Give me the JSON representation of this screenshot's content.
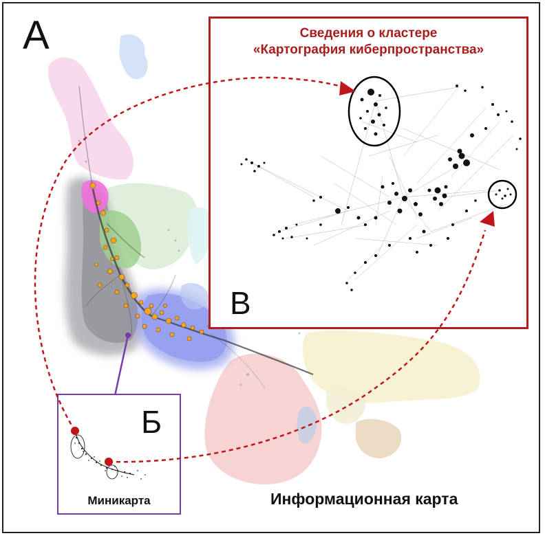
{
  "panels": {
    "main": {
      "letter": "А",
      "caption": "Информационная карта"
    },
    "minimap": {
      "letter": "Б",
      "caption": "Миникарта"
    },
    "inset": {
      "letter": "В",
      "title_line1": "Сведения о кластере",
      "title_line2": "«Картография киберпространства»"
    }
  },
  "colors": {
    "frame": "#222222",
    "inset_border": "#b21e1e",
    "minimap_border": "#7a3aa8",
    "dashed_arrow": "#c0151b",
    "minimap_arrow": "#7a3aa8",
    "highlight_nodes": "#f5a623"
  }
}
